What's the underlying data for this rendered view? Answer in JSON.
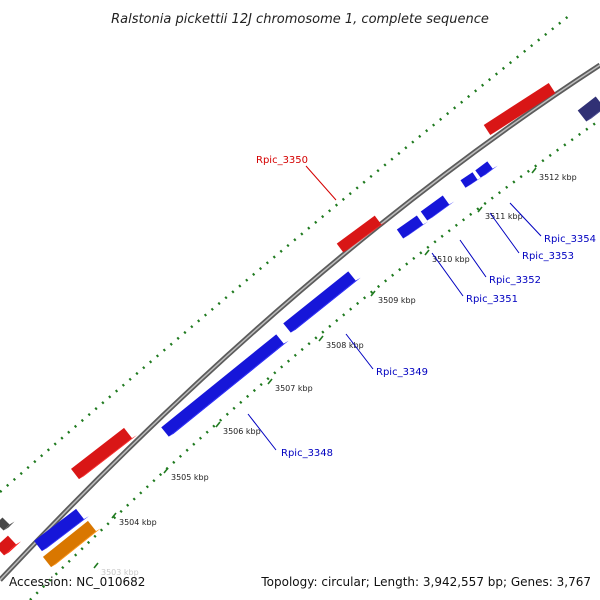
{
  "title": "Ralstonia pickettii 12J chromosome 1, complete sequence",
  "footer": {
    "accession": "Accession: NC_010682",
    "summary": "Topology: circular; Length: 3,942,557 bp; Genes: 3,767"
  },
  "colors": {
    "backbone": "#7a7a7a",
    "tick": "#1f7a1f",
    "forward_gene": "#ff1a1a",
    "reverse_gene": "#1a1aff",
    "other_gene": "#ff8c00",
    "dark_gene": "#3a3a8a",
    "label_red": "#d40000",
    "label_blue": "#0000c0"
  },
  "scale_ticks": [
    {
      "label": "3503 kbp"
    },
    {
      "label": "3504 kbp"
    },
    {
      "label": "3505 kbp"
    },
    {
      "label": "3506 kbp"
    },
    {
      "label": "3507 kbp"
    },
    {
      "label": "3508 kbp"
    },
    {
      "label": "3509 kbp"
    },
    {
      "label": "3510 kbp"
    },
    {
      "label": "3511 kbp"
    },
    {
      "label": "3512 kbp"
    }
  ],
  "gene_labels": [
    {
      "name": "Rpic_3350",
      "strand": "forward"
    },
    {
      "name": "Rpic_3348",
      "strand": "reverse"
    },
    {
      "name": "Rpic_3349",
      "strand": "reverse"
    },
    {
      "name": "Rpic_3351",
      "strand": "reverse"
    },
    {
      "name": "Rpic_3352",
      "strand": "reverse"
    },
    {
      "name": "Rpic_3353",
      "strand": "reverse"
    },
    {
      "name": "Rpic_3354",
      "strand": "reverse"
    }
  ]
}
